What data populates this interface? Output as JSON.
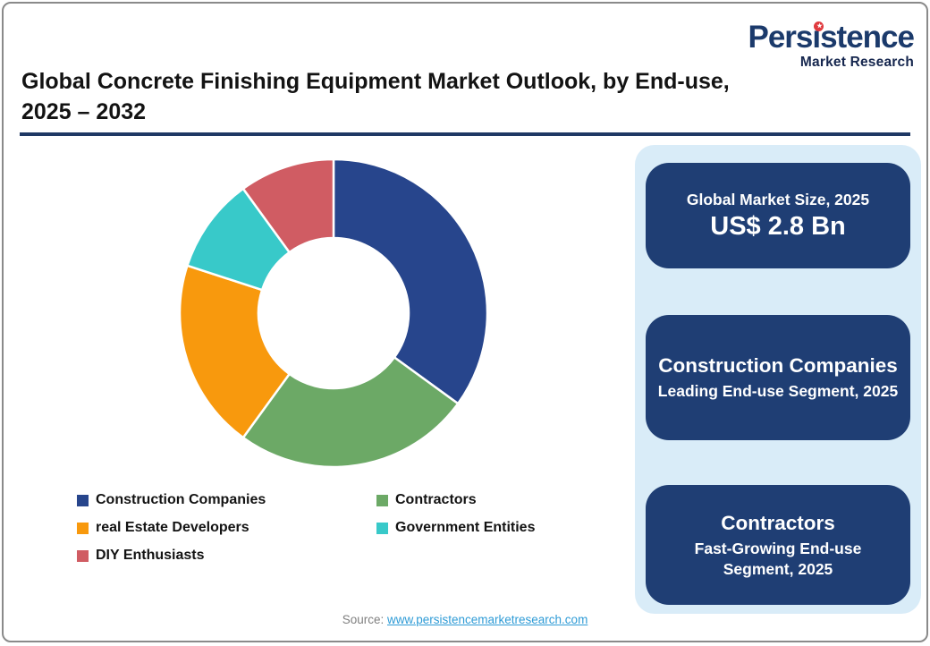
{
  "logo": {
    "name": "Persistence",
    "subtitle": "Market Research",
    "star_icon": "★"
  },
  "title": {
    "line1": "Global Concrete Finishing Equipment Market Outlook, by End-use,",
    "line2": "2025 – 2032"
  },
  "chart_data": {
    "type": "pie",
    "subtype": "donut",
    "categories": [
      "Construction Companies",
      "Contractors",
      "real Estate Developers",
      "Government Entities",
      "DIY Enthusiasts"
    ],
    "values": [
      35,
      25,
      20,
      10,
      10
    ],
    "values_note": "share in % estimated from arc angles (no data labels shown)",
    "colors": [
      "#27458C",
      "#6CA966",
      "#F8990D",
      "#38C9C9",
      "#D05C63"
    ],
    "start_angle_deg": 0,
    "direction": "clockwise",
    "donut_hole_ratio": 0.49,
    "segment_gap_color": "#FFFFFF",
    "legend_position": "below-left, 2 columns, 3 rows"
  },
  "sidebar": {
    "boxes": [
      {
        "heading": "Global Market Size, 2025",
        "value": "US$ 2.8 Bn"
      },
      {
        "heading": "Construction Companies",
        "sub": "Leading End-use Segment, 2025"
      },
      {
        "heading": "Contractors",
        "sub": "Fast-Growing End-use Segment, 2025"
      }
    ]
  },
  "footer": {
    "source_label": "Source:",
    "link": "www.persistencemarketresearch.com"
  },
  "theme": {
    "underline": "#1F3864",
    "sidebar_bg": "#D9ECF8",
    "box_bg": "#1F3E74",
    "box_text": "#FFFFFF",
    "logo_navy": "#1B3A6B",
    "logo_sub": "#15264E",
    "logo_star": "#E03A3E",
    "link": "#2E9BD6",
    "source_text": "#7F7F7F",
    "title_text": "#131313",
    "card_border": "#8A8A8A"
  }
}
